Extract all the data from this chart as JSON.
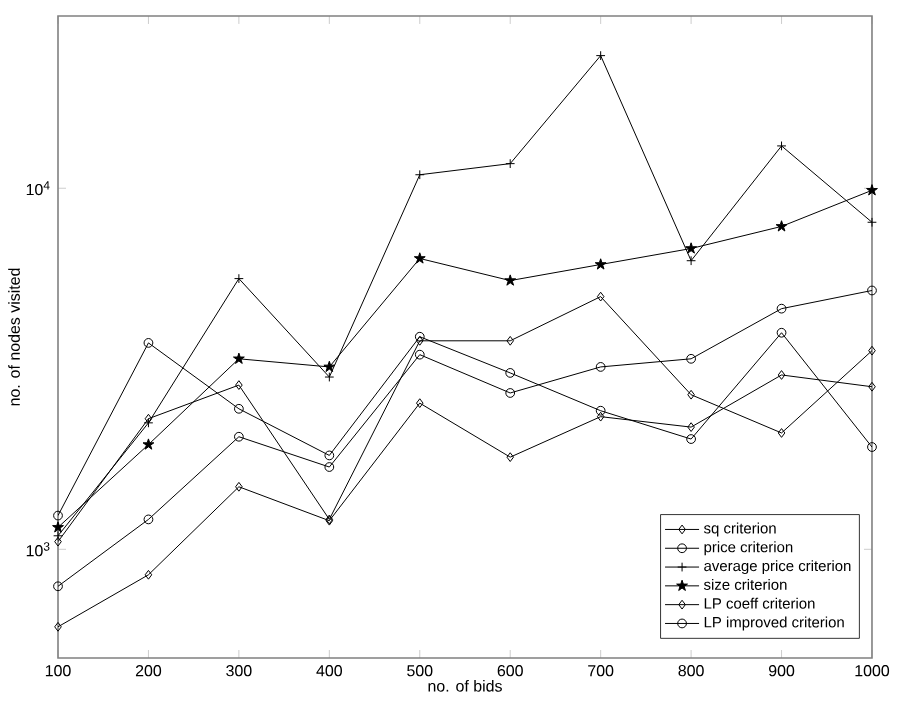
{
  "chart_data": {
    "type": "line",
    "xlabel": "no. of bids",
    "ylabel": "no. of nodes visited",
    "x": [
      100,
      200,
      300,
      400,
      500,
      600,
      700,
      800,
      900,
      1000
    ],
    "series": [
      {
        "name": "sq criterion",
        "color": "#000000",
        "marker": "diamond",
        "values": [
          610,
          850,
          1490,
          1200,
          2540,
          1800,
          2330,
          2180,
          3040,
          2820
        ]
      },
      {
        "name": "price criterion",
        "color": "#000000",
        "marker": "circle",
        "values": [
          790,
          1210,
          2050,
          1690,
          3460,
          2710,
          3200,
          3370,
          4640,
          5210
        ]
      },
      {
        "name": "average price criterion",
        "color": "#000000",
        "marker": "cross",
        "values": [
          1090,
          2240,
          5620,
          3000,
          10900,
          11700,
          23300,
          6300,
          13100,
          8050
        ]
      },
      {
        "name": "size criterion",
        "color": "#000000",
        "marker": "star",
        "values": [
          1150,
          1950,
          3370,
          3200,
          6390,
          5550,
          6150,
          6810,
          7840,
          9870
        ]
      },
      {
        "name": "LP coeff criterion",
        "color": "#000000",
        "marker": "diamond",
        "values": [
          1050,
          2300,
          2850,
          1210,
          3780,
          3780,
          5010,
          2680,
          2100,
          3550
        ]
      },
      {
        "name": "LP improved criterion",
        "color": "#000000",
        "marker": "circle",
        "values": [
          1240,
          3730,
          2450,
          1820,
          3880,
          3080,
          2420,
          2020,
          3980,
          1920
        ]
      }
    ],
    "log": "y",
    "xlim": [
      100,
      1000
    ],
    "ylim": [
      500,
      30000
    ],
    "xticks": [
      100,
      200,
      300,
      400,
      500,
      600,
      700,
      800,
      900,
      1000
    ],
    "yticks": [
      {
        "value": 1000,
        "label": "10$^{3}$"
      },
      {
        "value": 10000,
        "label": "10$^{4}$"
      }
    ],
    "legend": "bottom right"
  }
}
